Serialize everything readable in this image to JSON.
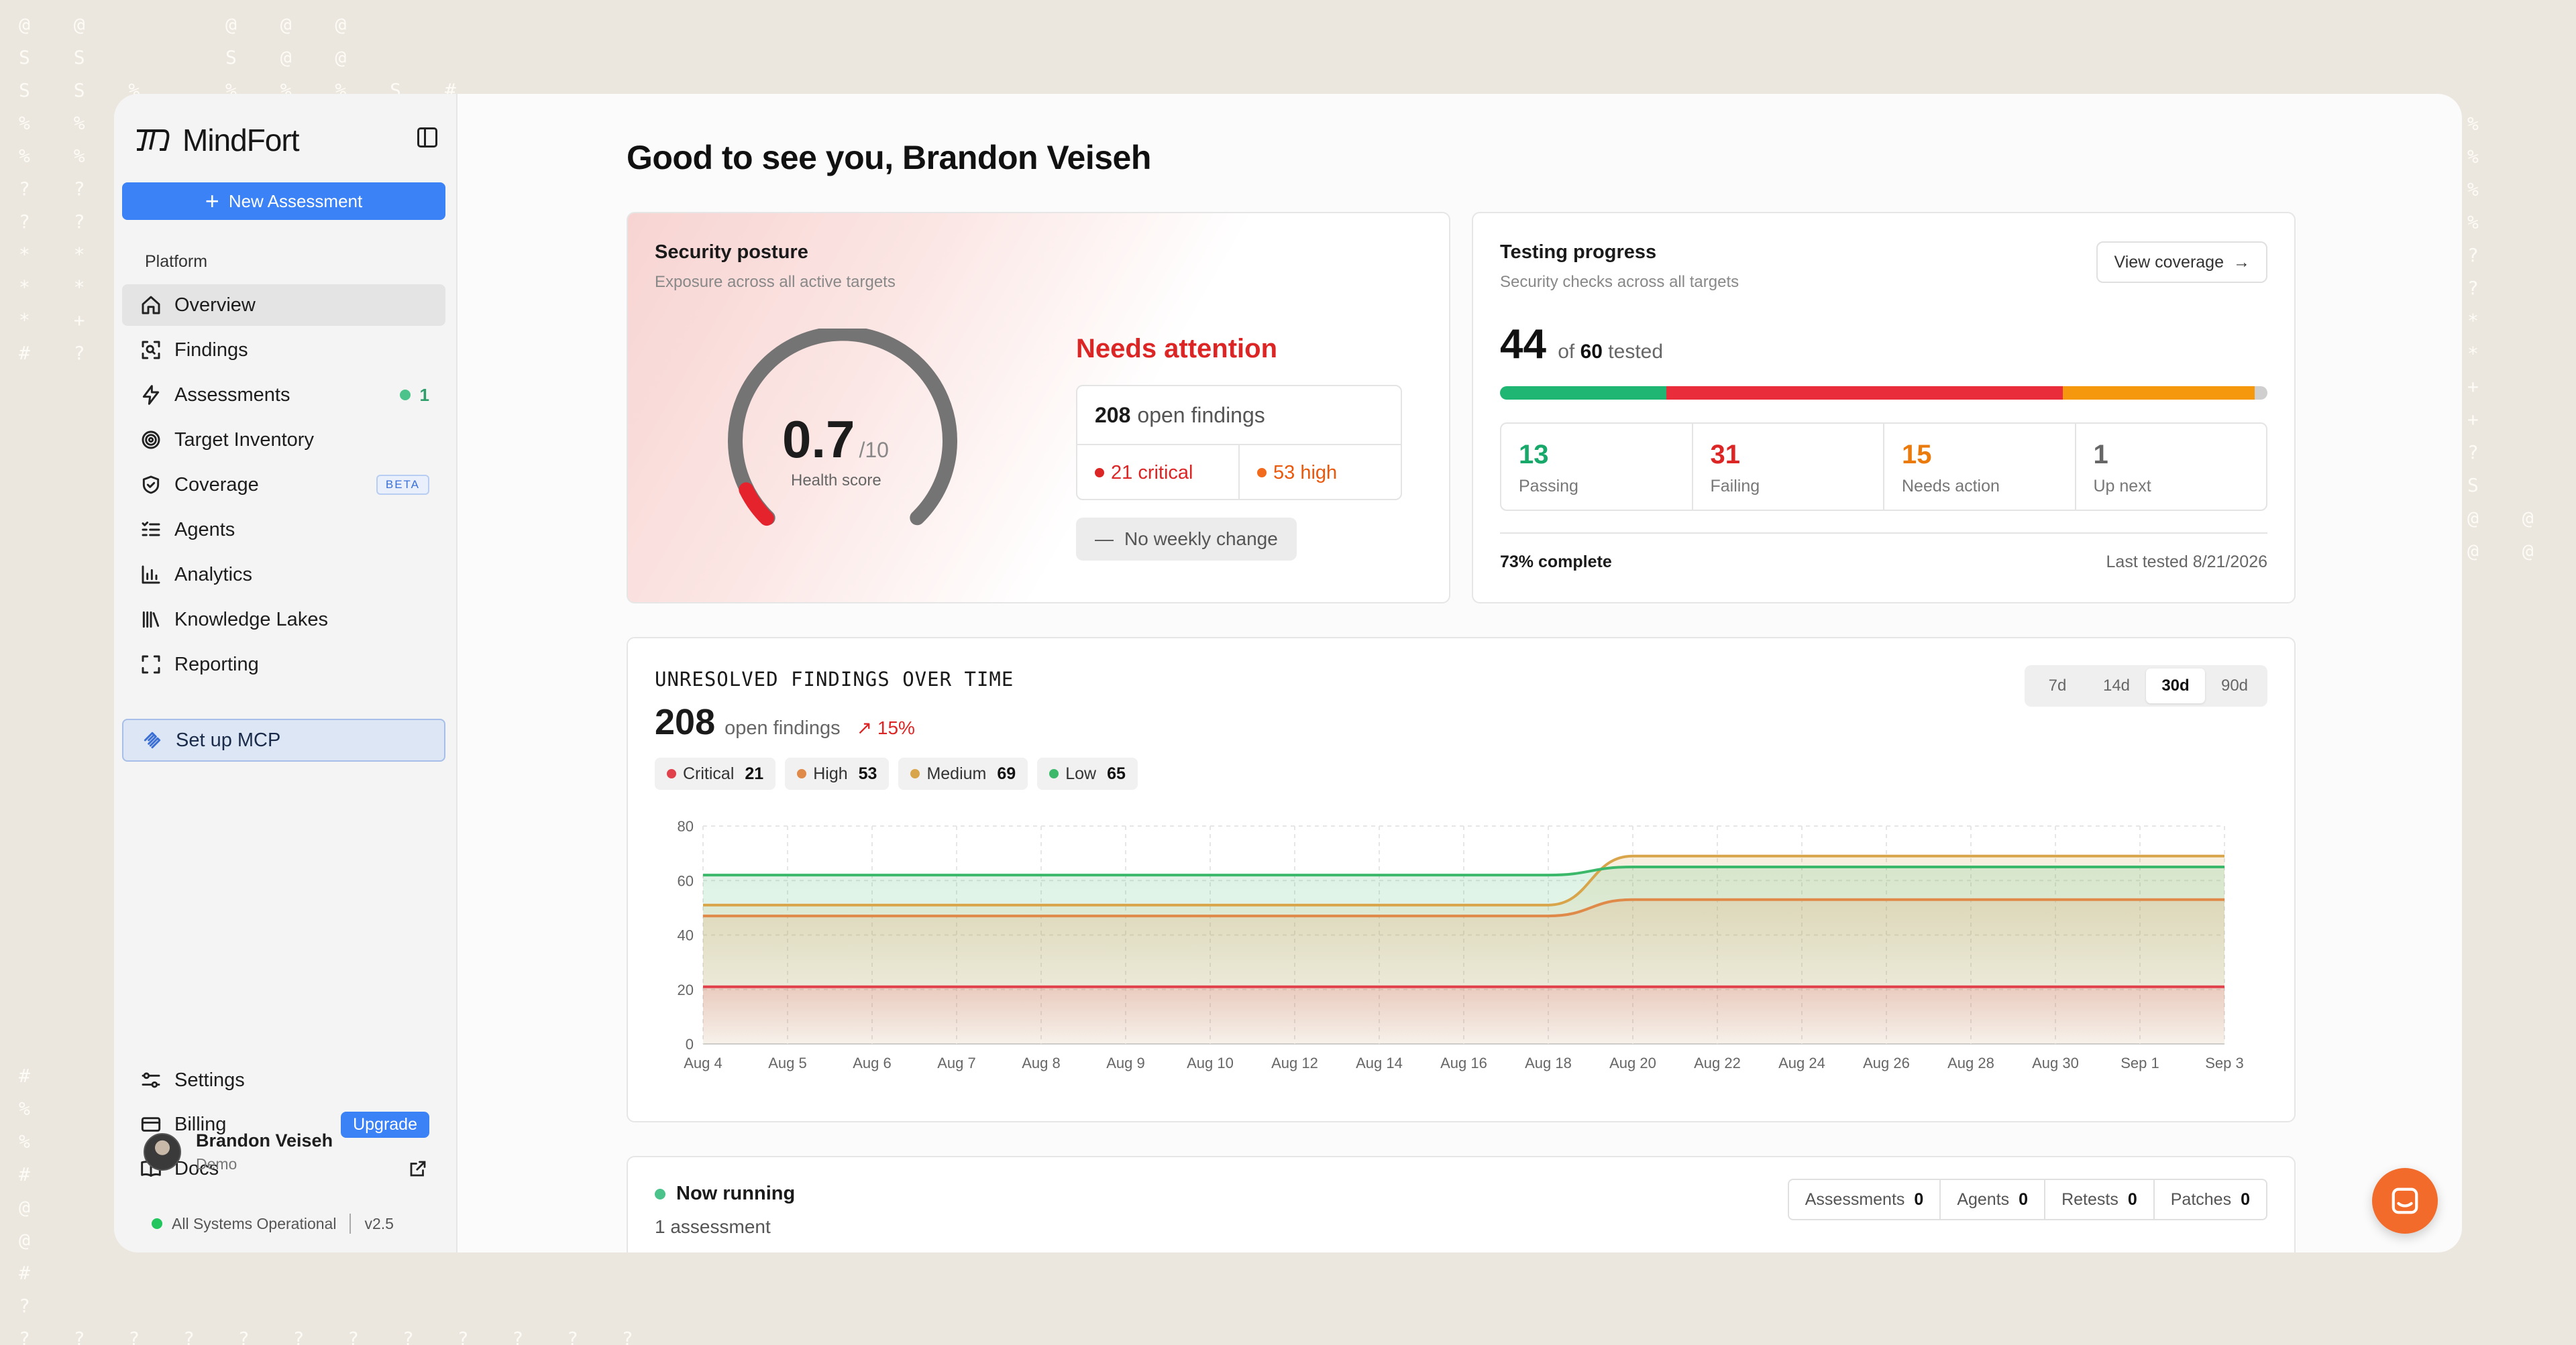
{
  "brand": {
    "name": "MindFort"
  },
  "sidebar": {
    "new_assessment": "New Assessment",
    "section_label": "Platform",
    "items": [
      {
        "label": "Overview",
        "icon": "home-icon"
      },
      {
        "label": "Findings",
        "icon": "scan-icon"
      },
      {
        "label": "Assessments",
        "icon": "bolt-icon",
        "count": "1"
      },
      {
        "label": "Target Inventory",
        "icon": "target-icon"
      },
      {
        "label": "Coverage",
        "icon": "shield-icon",
        "badge": "BETA"
      },
      {
        "label": "Agents",
        "icon": "list-icon"
      },
      {
        "label": "Analytics",
        "icon": "bar-chart-icon"
      },
      {
        "label": "Knowledge Lakes",
        "icon": "library-icon"
      },
      {
        "label": "Reporting",
        "icon": "frame-icon"
      }
    ],
    "mcp_label": "Set up MCP",
    "bottom": {
      "settings": "Settings",
      "billing": "Billing",
      "upgrade": "Upgrade",
      "docs": "Docs"
    },
    "user": {
      "name": "Brandon Veiseh",
      "role": "Demo"
    },
    "status": "All Systems Operational",
    "version": "v2.5"
  },
  "greeting": "Good to see you, Brandon Veiseh",
  "posture": {
    "title": "Security posture",
    "subtitle": "Exposure across all active targets",
    "score": "0.7",
    "score_max": "/10",
    "score_value": 0.7,
    "score_label": "Health score",
    "status": "Needs attention",
    "open_count": "208",
    "open_label": "open findings",
    "critical": "21 critical",
    "high": "53 high",
    "weekly": "No weekly change"
  },
  "progress": {
    "title": "Testing progress",
    "subtitle": "Security checks across all targets",
    "view_btn": "View coverage",
    "tested": "44",
    "of": "of",
    "total": "60",
    "tested_word": "tested",
    "stats": [
      {
        "n": "13",
        "label": "Passing",
        "color": "#16a34a"
      },
      {
        "n": "31",
        "label": "Failing",
        "color": "#dc2626"
      },
      {
        "n": "15",
        "label": "Needs action",
        "color": "#ea7a0c"
      },
      {
        "n": "1",
        "label": "Up next",
        "color": "#666666"
      }
    ],
    "complete": "73% complete",
    "last_tested": "Last tested 8/21/2026"
  },
  "findings_chart": {
    "title": "UNRESOLVED FINDINGS OVER TIME",
    "total": "208",
    "total_label": "open findings",
    "change": "15%",
    "legend": [
      {
        "label": "Critical",
        "value": "21",
        "color": "#e0414b"
      },
      {
        "label": "High",
        "value": "53",
        "color": "#e08a4a"
      },
      {
        "label": "Medium",
        "value": "69",
        "color": "#d9a54a"
      },
      {
        "label": "Low",
        "value": "65",
        "color": "#3bb86a"
      }
    ],
    "ranges": [
      "7d",
      "14d",
      "30d",
      "90d"
    ],
    "active_range": "30d"
  },
  "chart_data": {
    "type": "line",
    "title": "UNRESOLVED FINDINGS OVER TIME",
    "x": [
      "Aug 4",
      "Aug 5",
      "Aug 6",
      "Aug 7",
      "Aug 8",
      "Aug 9",
      "Aug 10",
      "Aug 12",
      "Aug 14",
      "Aug 16",
      "Aug 18",
      "Aug 20",
      "Aug 22",
      "Aug 24",
      "Aug 26",
      "Aug 28",
      "Aug 30",
      "Sep 1",
      "Sep 3"
    ],
    "ylim": [
      0,
      80
    ],
    "yticks": [
      0,
      20,
      40,
      60,
      80
    ],
    "grid": true,
    "series": [
      {
        "name": "Critical",
        "color": "#e0414b",
        "values": [
          21,
          21,
          21,
          21,
          21,
          21,
          21,
          21,
          21,
          21,
          21,
          21,
          21,
          21,
          21,
          21,
          21,
          21,
          21
        ]
      },
      {
        "name": "High",
        "color": "#e08a4a",
        "values": [
          47,
          47,
          47,
          47,
          47,
          47,
          47,
          47,
          47,
          47,
          47,
          53,
          53,
          53,
          53,
          53,
          53,
          53,
          53
        ]
      },
      {
        "name": "Medium",
        "color": "#d9a54a",
        "values": [
          51,
          51,
          51,
          51,
          51,
          51,
          51,
          51,
          51,
          51,
          51,
          69,
          69,
          69,
          69,
          69,
          69,
          69,
          69
        ]
      },
      {
        "name": "Low",
        "color": "#3bb86a",
        "values": [
          62,
          62,
          62,
          62,
          62,
          62,
          62,
          62,
          62,
          62,
          62,
          65,
          65,
          65,
          65,
          65,
          65,
          65,
          65
        ]
      }
    ]
  },
  "running": {
    "title": "Now running",
    "subtitle": "1 assessment",
    "tabs": [
      {
        "label": "Assessments",
        "value": "0"
      },
      {
        "label": "Agents",
        "value": "0"
      },
      {
        "label": "Retests",
        "value": "0"
      },
      {
        "label": "Patches",
        "value": "0"
      }
    ]
  }
}
